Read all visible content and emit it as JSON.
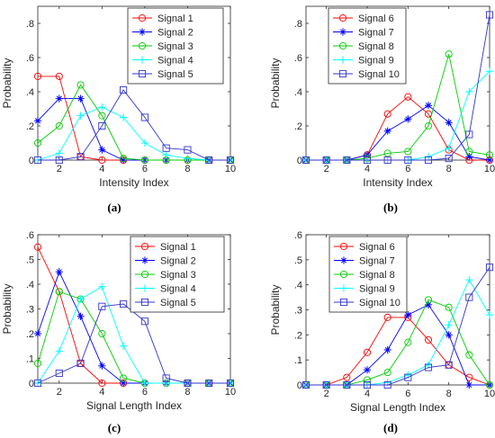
{
  "figure": {
    "panels": [
      {
        "caption": "(a)"
      },
      {
        "caption": "(b)"
      },
      {
        "caption": "(c)"
      },
      {
        "caption": "(d)"
      }
    ]
  },
  "colors": {
    "Signal 1": "#ff0000",
    "Signal 2": "#0000ff",
    "Signal 3": "#00cc00",
    "Signal 4": "#00ffff",
    "Signal 5": "#3333cc",
    "Signal 6": "#ff0000",
    "Signal 7": "#0000ff",
    "Signal 8": "#00cc00",
    "Signal 9": "#00ffff",
    "Signal 10": "#3333cc"
  },
  "chart_data": [
    {
      "type": "line",
      "caption": "(a)",
      "xlabel": "Intensity Index",
      "ylabel": "Probability",
      "xlim": [
        1,
        10
      ],
      "ylim": [
        0,
        0.9
      ],
      "xticks": [
        2,
        4,
        6,
        8,
        10
      ],
      "yticks": [
        0,
        0.2,
        0.4,
        0.6,
        0.8
      ],
      "grid": false,
      "legend_position": "top-right",
      "x": [
        1,
        2,
        3,
        4,
        5,
        6,
        7,
        8,
        9,
        10
      ],
      "series": [
        {
          "name": "Signal 1",
          "marker": "circle",
          "values": [
            0.49,
            0.49,
            0.02,
            0,
            0,
            0,
            0,
            0,
            0,
            0
          ]
        },
        {
          "name": "Signal 2",
          "marker": "star",
          "values": [
            0.23,
            0.36,
            0.36,
            0.06,
            0,
            0,
            0,
            0,
            0,
            0
          ]
        },
        {
          "name": "Signal 3",
          "marker": "circle",
          "values": [
            0.1,
            0.2,
            0.44,
            0.26,
            0.01,
            0,
            0,
            0,
            0,
            0
          ]
        },
        {
          "name": "Signal 4",
          "marker": "plus",
          "values": [
            0,
            0.04,
            0.26,
            0.31,
            0.25,
            0.1,
            0.03,
            0.01,
            0,
            0
          ]
        },
        {
          "name": "Signal 5",
          "marker": "square",
          "values": [
            0,
            0,
            0.02,
            0.2,
            0.41,
            0.25,
            0.07,
            0.06,
            0,
            0
          ]
        }
      ]
    },
    {
      "type": "line",
      "caption": "(b)",
      "xlabel": "Intensity Index",
      "ylabel": "Probability",
      "xlim": [
        1,
        10
      ],
      "ylim": [
        0,
        0.9
      ],
      "xticks": [
        2,
        4,
        6,
        8,
        10
      ],
      "yticks": [
        0,
        0.2,
        0.4,
        0.6,
        0.8
      ],
      "grid": false,
      "legend_position": "top-left",
      "x": [
        1,
        2,
        3,
        4,
        5,
        6,
        7,
        8,
        9,
        10
      ],
      "series": [
        {
          "name": "Signal 6",
          "marker": "circle",
          "values": [
            0,
            0,
            0,
            0.03,
            0.27,
            0.37,
            0.27,
            0.06,
            0,
            0
          ]
        },
        {
          "name": "Signal 7",
          "marker": "star",
          "values": [
            0,
            0,
            0,
            0.03,
            0.17,
            0.24,
            0.32,
            0.22,
            0.02,
            0
          ]
        },
        {
          "name": "Signal 8",
          "marker": "circle",
          "values": [
            0,
            0,
            0,
            0.01,
            0.04,
            0.05,
            0.2,
            0.62,
            0.05,
            0.03
          ]
        },
        {
          "name": "Signal 9",
          "marker": "plus",
          "values": [
            0,
            0,
            0,
            0,
            0,
            0,
            0.02,
            0.07,
            0.4,
            0.52
          ]
        },
        {
          "name": "Signal 10",
          "marker": "square",
          "values": [
            0,
            0,
            0,
            0,
            0,
            0,
            0,
            0.01,
            0.15,
            0.85
          ]
        }
      ]
    },
    {
      "type": "line",
      "caption": "(c)",
      "xlabel": "Signal Length Index",
      "ylabel": "Probability",
      "xlim": [
        1,
        10
      ],
      "ylim": [
        0,
        0.6
      ],
      "xticks": [
        2,
        4,
        6,
        8,
        10
      ],
      "yticks": [
        0,
        0.1,
        0.2,
        0.3,
        0.4,
        0.5,
        0.6
      ],
      "grid": false,
      "legend_position": "top-right",
      "x": [
        1,
        2,
        3,
        4,
        5,
        6,
        7,
        8,
        9,
        10
      ],
      "series": [
        {
          "name": "Signal 1",
          "marker": "circle",
          "values": [
            0.55,
            0.37,
            0.08,
            0,
            0,
            0,
            0,
            0,
            0,
            0
          ]
        },
        {
          "name": "Signal 2",
          "marker": "star",
          "values": [
            0.2,
            0.45,
            0.27,
            0.07,
            0,
            0,
            0,
            0,
            0,
            0
          ]
        },
        {
          "name": "Signal 3",
          "marker": "circle",
          "values": [
            0.08,
            0.37,
            0.34,
            0.2,
            0.02,
            0,
            0,
            0,
            0,
            0
          ]
        },
        {
          "name": "Signal 4",
          "marker": "plus",
          "values": [
            0,
            0.13,
            0.34,
            0.39,
            0.15,
            0,
            0,
            0,
            0,
            0
          ]
        },
        {
          "name": "Signal 5",
          "marker": "square",
          "values": [
            0,
            0.04,
            0.08,
            0.31,
            0.32,
            0.25,
            0.02,
            0,
            0,
            0
          ]
        }
      ]
    },
    {
      "type": "line",
      "caption": "(d)",
      "xlabel": "Signal Length Index",
      "ylabel": "Probability",
      "xlim": [
        1,
        10
      ],
      "ylim": [
        0,
        0.6
      ],
      "xticks": [
        2,
        4,
        6,
        8,
        10
      ],
      "yticks": [
        0,
        0.1,
        0.2,
        0.3,
        0.4,
        0.5,
        0.6
      ],
      "grid": false,
      "legend_position": "top-left",
      "x": [
        1,
        2,
        3,
        4,
        5,
        6,
        7,
        8,
        9,
        10
      ],
      "series": [
        {
          "name": "Signal 6",
          "marker": "circle",
          "values": [
            0,
            0,
            0.03,
            0.13,
            0.27,
            0.27,
            0.18,
            0.08,
            0.03,
            0
          ]
        },
        {
          "name": "Signal 7",
          "marker": "star",
          "values": [
            0,
            0,
            0,
            0.06,
            0.14,
            0.28,
            0.32,
            0.2,
            0,
            0
          ]
        },
        {
          "name": "Signal 8",
          "marker": "circle",
          "values": [
            0,
            0,
            0,
            0.02,
            0.05,
            0.17,
            0.34,
            0.31,
            0.12,
            0
          ]
        },
        {
          "name": "Signal 9",
          "marker": "plus",
          "values": [
            0,
            0,
            0,
            0,
            0.01,
            0.04,
            0.08,
            0.24,
            0.42,
            0.28
          ]
        },
        {
          "name": "Signal 10",
          "marker": "square",
          "values": [
            0,
            0,
            0,
            0,
            0,
            0.03,
            0.07,
            0.08,
            0.35,
            0.47
          ]
        }
      ]
    }
  ]
}
